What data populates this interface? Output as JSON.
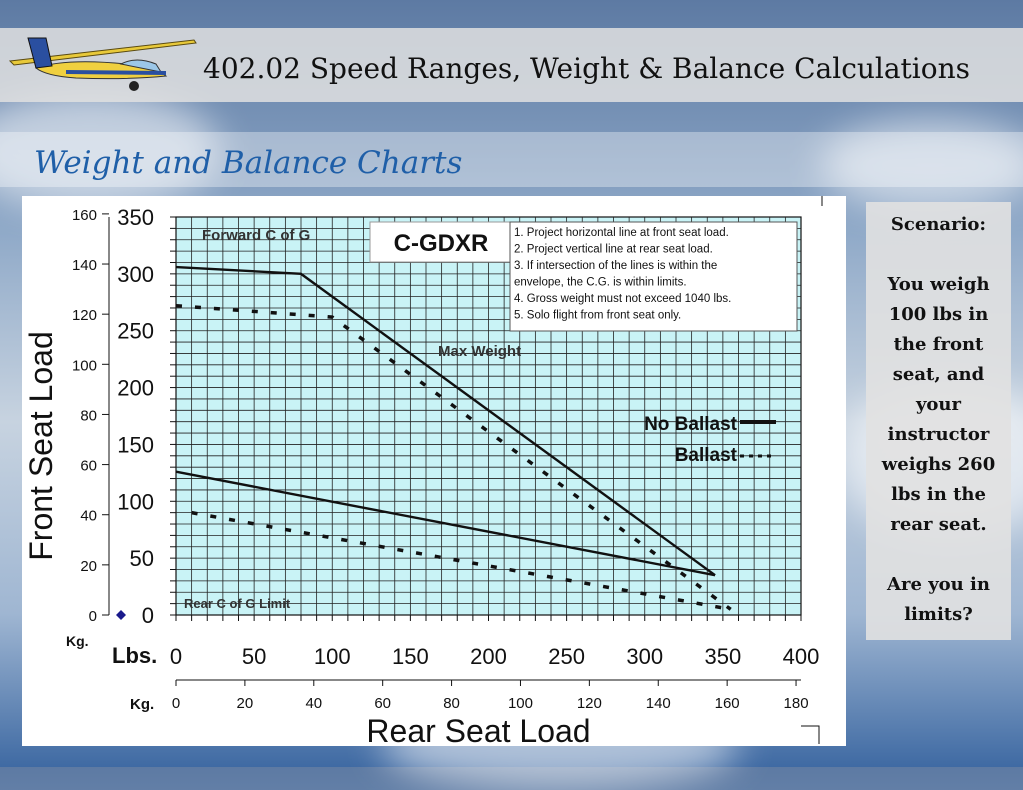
{
  "header": {
    "title": "402.02 Speed Ranges, Weight & Balance Calculations",
    "subtitle": "Weight and Balance Charts"
  },
  "icons": {
    "logo": "glider-icon"
  },
  "scenario": {
    "heading": "Scenario:",
    "body": "You weigh 100 lbs in the front seat, and your instructor weighs 260 lbs in the rear seat.",
    "question": "Are you in limits?"
  },
  "chart_data": {
    "type": "line",
    "aircraft_label": "C-GDXR",
    "xlabel": "Rear Seat Load",
    "ylabel": "Front Seat Load",
    "x_unit_primary": "Lbs.",
    "x_unit_secondary": "Kg.",
    "y_unit_secondary": "Kg.",
    "xlim": [
      0,
      400
    ],
    "ylim": [
      0,
      350
    ],
    "x_ticks_lbs": [
      "0",
      "50",
      "100",
      "150",
      "200",
      "250",
      "300",
      "350",
      "400"
    ],
    "x_ticks_kg": [
      "0",
      "20",
      "40",
      "60",
      "80",
      "100",
      "120",
      "140",
      "160",
      "180"
    ],
    "y_ticks_lbs": [
      "0",
      "50",
      "100",
      "150",
      "200",
      "250",
      "300",
      "350"
    ],
    "y_ticks_kg": [
      "0",
      "20",
      "40",
      "60",
      "80",
      "100",
      "120",
      "140",
      "160"
    ],
    "grid": true,
    "legend": [
      {
        "label": "No Ballast",
        "style": "solid"
      },
      {
        "label": "Ballast",
        "style": "dotted"
      }
    ],
    "annotations": {
      "forward_cg": "Forward C of G",
      "rear_cg": "Rear C of G Limit",
      "max_weight": "Max Weight"
    },
    "instructions": [
      "1.  Project horizontal line at front seat load.",
      "2.  Project vertical line at rear seat load.",
      "3.  If intersection of the lines is within the",
      "     envelope, the C.G. is within limits.",
      "4.  Gross weight must not exceed 1040 lbs.",
      "5.  Solo flight from front seat only."
    ],
    "series": [
      {
        "name": "No Ballast",
        "style": "solid",
        "line": "forward_cg_and_max_weight",
        "x": [
          0,
          80,
          345
        ],
        "y": [
          306,
          300,
          35
        ]
      },
      {
        "name": "No Ballast",
        "style": "solid",
        "line": "rear_cg",
        "x": [
          0,
          345
        ],
        "y": [
          126,
          35
        ]
      },
      {
        "name": "Ballast",
        "style": "dotted",
        "line": "forward_cg_and_max_weight",
        "x": [
          0,
          100,
          355
        ],
        "y": [
          272,
          262,
          5
        ]
      },
      {
        "name": "Ballast",
        "style": "dotted",
        "line": "rear_cg",
        "x": [
          10,
          355
        ],
        "y": [
          90,
          5
        ]
      }
    ],
    "marker": {
      "x": 0,
      "y": 0,
      "color": "#1a1a8c"
    },
    "colors": {
      "plot_background": "#c9f3f6",
      "grid": "#222222"
    }
  }
}
